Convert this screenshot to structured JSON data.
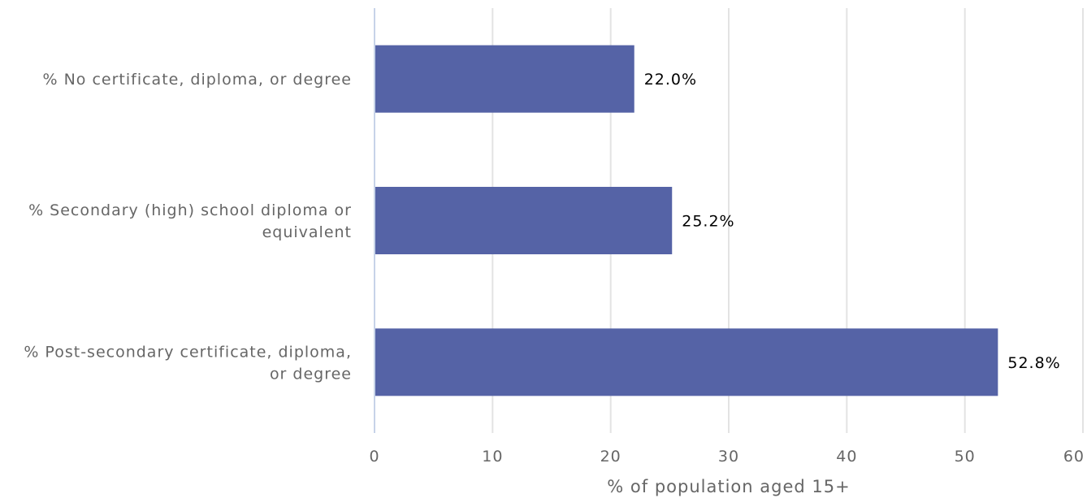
{
  "chart_data": {
    "type": "bar",
    "orientation": "horizontal",
    "title": "",
    "xlabel": "% of population aged 15+",
    "ylabel": "",
    "xlim": [
      0,
      60
    ],
    "x_ticks": [
      "0",
      "10",
      "20",
      "30",
      "40",
      "50",
      "60"
    ],
    "grid": true,
    "categories": [
      [
        "% No certificate, diploma, or degree"
      ],
      [
        "% Secondary (high) school diploma or",
        "equivalent"
      ],
      [
        "% Post-secondary certificate, diploma,",
        "or degree"
      ]
    ],
    "values": [
      22.0,
      25.2,
      52.8
    ],
    "data_labels": [
      "22.0%",
      "25.2%",
      "52.8%"
    ],
    "bar_color": "#5563a6"
  }
}
